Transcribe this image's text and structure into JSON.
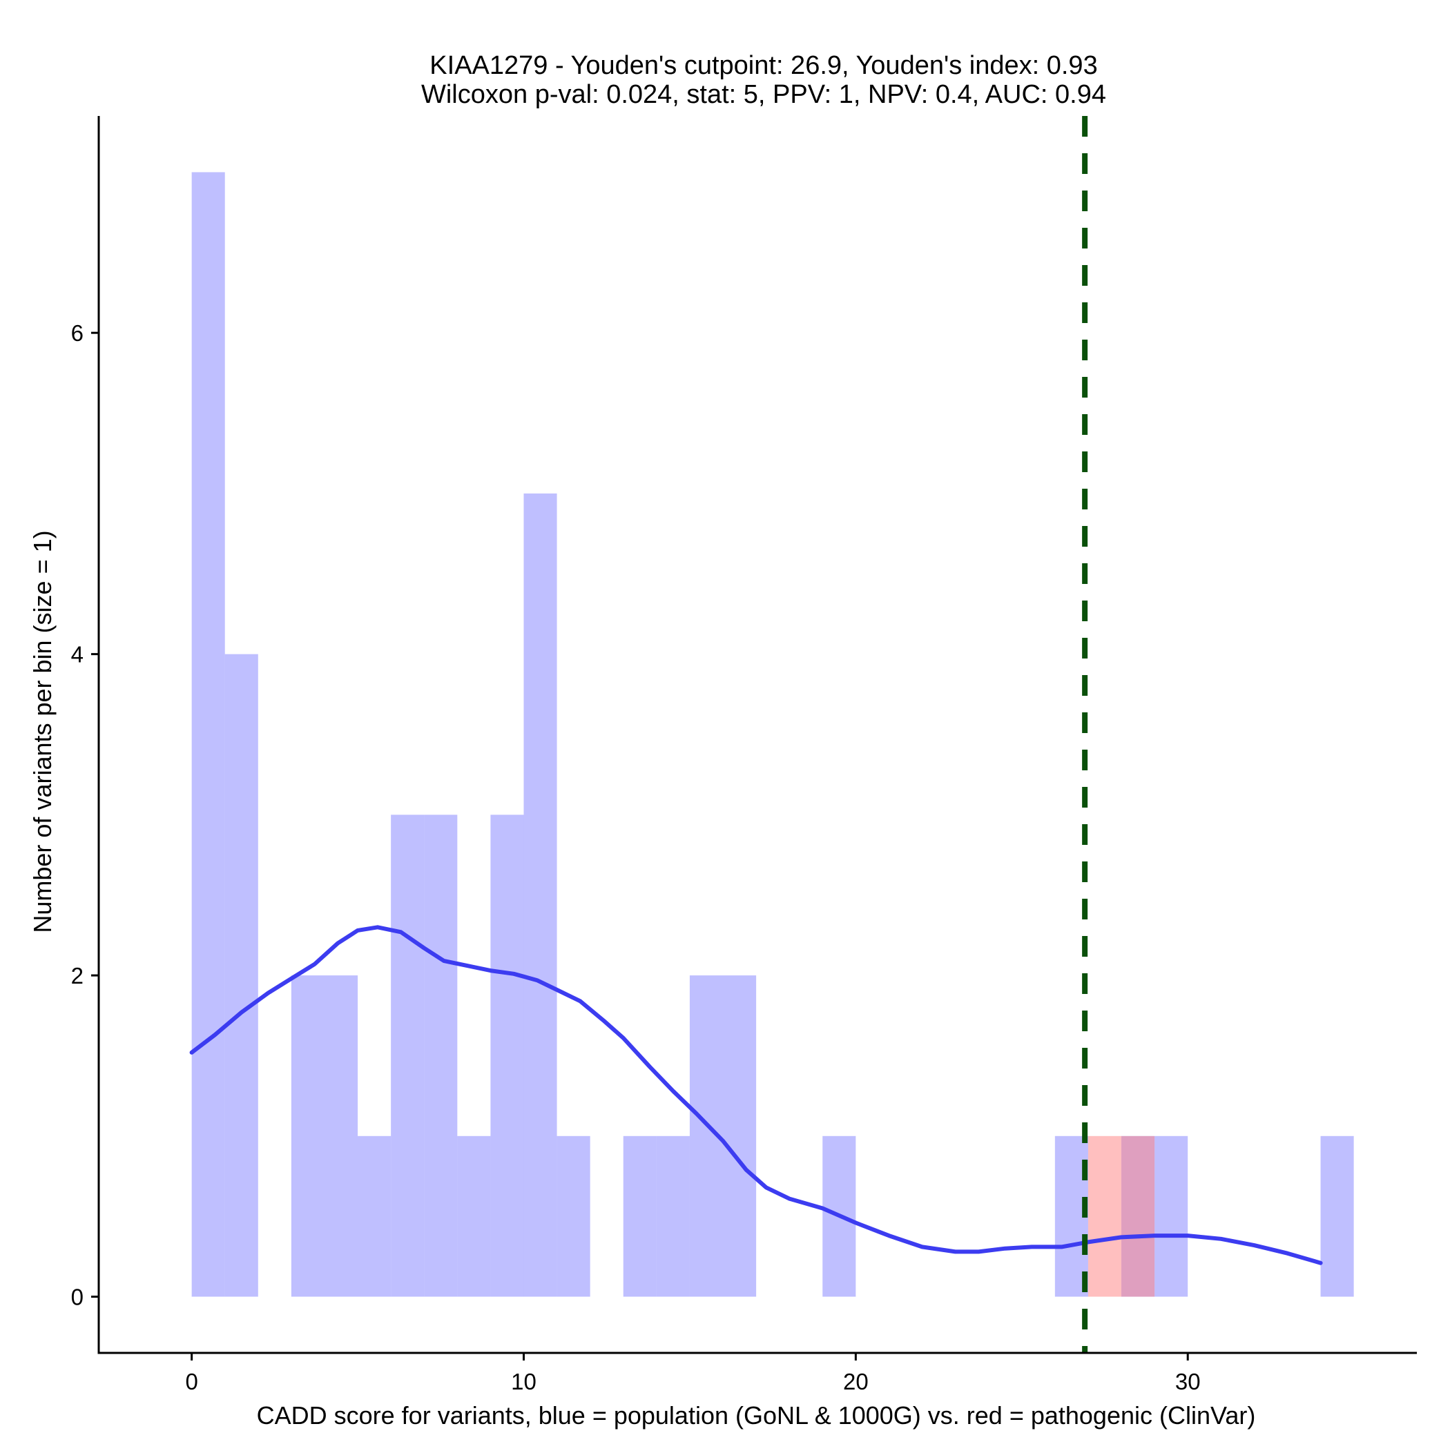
{
  "chart_data": {
    "type": "histogram",
    "title_line1": "KIAA1279 - Youden's cutpoint: 26.9, Youden's index: 0.93",
    "title_line2": "Wilcoxon p-val: 0.024, stat: 5, PPV: 1, NPV: 0.4, AUC: 0.94",
    "xlabel": "CADD score for variants, blue = population (GoNL & 1000G) vs. red = pathogenic (ClinVar)",
    "ylabel": "Number of variants per bin (size = 1)",
    "xlim": [
      -2.8,
      36.9
    ],
    "ylim": [
      -0.35,
      7.35
    ],
    "x_ticks": [
      0,
      10,
      20,
      30
    ],
    "x_tick_labels": [
      "0",
      "10",
      "20",
      "30"
    ],
    "y_ticks": [
      0,
      2,
      4,
      6
    ],
    "y_tick_labels": [
      "0",
      "2",
      "4",
      "6"
    ],
    "bin_width": 1,
    "series": [
      {
        "name": "population (GoNL & 1000G)",
        "color": "#8080ff",
        "opacity": 0.5,
        "bins": [
          {
            "x0": 0,
            "count": 7
          },
          {
            "x0": 1,
            "count": 4
          },
          {
            "x0": 3,
            "count": 2
          },
          {
            "x0": 4,
            "count": 2
          },
          {
            "x0": 5,
            "count": 1
          },
          {
            "x0": 6,
            "count": 3
          },
          {
            "x0": 7,
            "count": 3
          },
          {
            "x0": 8,
            "count": 1
          },
          {
            "x0": 9,
            "count": 3
          },
          {
            "x0": 10,
            "count": 5
          },
          {
            "x0": 11,
            "count": 1
          },
          {
            "x0": 13,
            "count": 1
          },
          {
            "x0": 14,
            "count": 1
          },
          {
            "x0": 15,
            "count": 2
          },
          {
            "x0": 16,
            "count": 2
          },
          {
            "x0": 19,
            "count": 1
          },
          {
            "x0": 26,
            "count": 1
          },
          {
            "x0": 28,
            "count": 1
          },
          {
            "x0": 29,
            "count": 1
          },
          {
            "x0": 34,
            "count": 1
          }
        ]
      },
      {
        "name": "pathogenic (ClinVar)",
        "color": "#ff8080",
        "opacity": 0.5,
        "bins": [
          {
            "x0": 27,
            "count": 1
          },
          {
            "x0": 28,
            "count": 1
          }
        ]
      }
    ],
    "density_curve": {
      "name": "population density (scaled)",
      "color": "#3c3cf0",
      "points": [
        [
          0,
          1.52
        ],
        [
          0.7,
          1.63
        ],
        [
          1.5,
          1.77
        ],
        [
          2.3,
          1.89
        ],
        [
          3.0,
          1.98
        ],
        [
          3.7,
          2.07
        ],
        [
          4.4,
          2.2
        ],
        [
          5.0,
          2.28
        ],
        [
          5.6,
          2.3
        ],
        [
          6.3,
          2.27
        ],
        [
          7.0,
          2.17
        ],
        [
          7.6,
          2.09
        ],
        [
          8.3,
          2.06
        ],
        [
          9.0,
          2.03
        ],
        [
          9.7,
          2.01
        ],
        [
          10.4,
          1.97
        ],
        [
          11.0,
          1.91
        ],
        [
          11.7,
          1.84
        ],
        [
          12.4,
          1.72
        ],
        [
          13.0,
          1.61
        ],
        [
          13.8,
          1.43
        ],
        [
          14.5,
          1.28
        ],
        [
          15.2,
          1.14
        ],
        [
          16.0,
          0.97
        ],
        [
          16.7,
          0.79
        ],
        [
          17.3,
          0.68
        ],
        [
          18.0,
          0.61
        ],
        [
          19.0,
          0.55
        ],
        [
          20.0,
          0.46
        ],
        [
          21.0,
          0.38
        ],
        [
          22.0,
          0.31
        ],
        [
          23.0,
          0.28
        ],
        [
          23.7,
          0.28
        ],
        [
          24.5,
          0.3
        ],
        [
          25.3,
          0.31
        ],
        [
          26.2,
          0.31
        ],
        [
          27.0,
          0.34
        ],
        [
          28.0,
          0.37
        ],
        [
          29.0,
          0.38
        ],
        [
          30.0,
          0.38
        ],
        [
          31.0,
          0.36
        ],
        [
          32.0,
          0.32
        ],
        [
          33.0,
          0.27
        ],
        [
          34.0,
          0.21
        ]
      ]
    },
    "cutpoint": {
      "x": 26.9,
      "color": "#0a500a",
      "style": "dashed"
    }
  }
}
